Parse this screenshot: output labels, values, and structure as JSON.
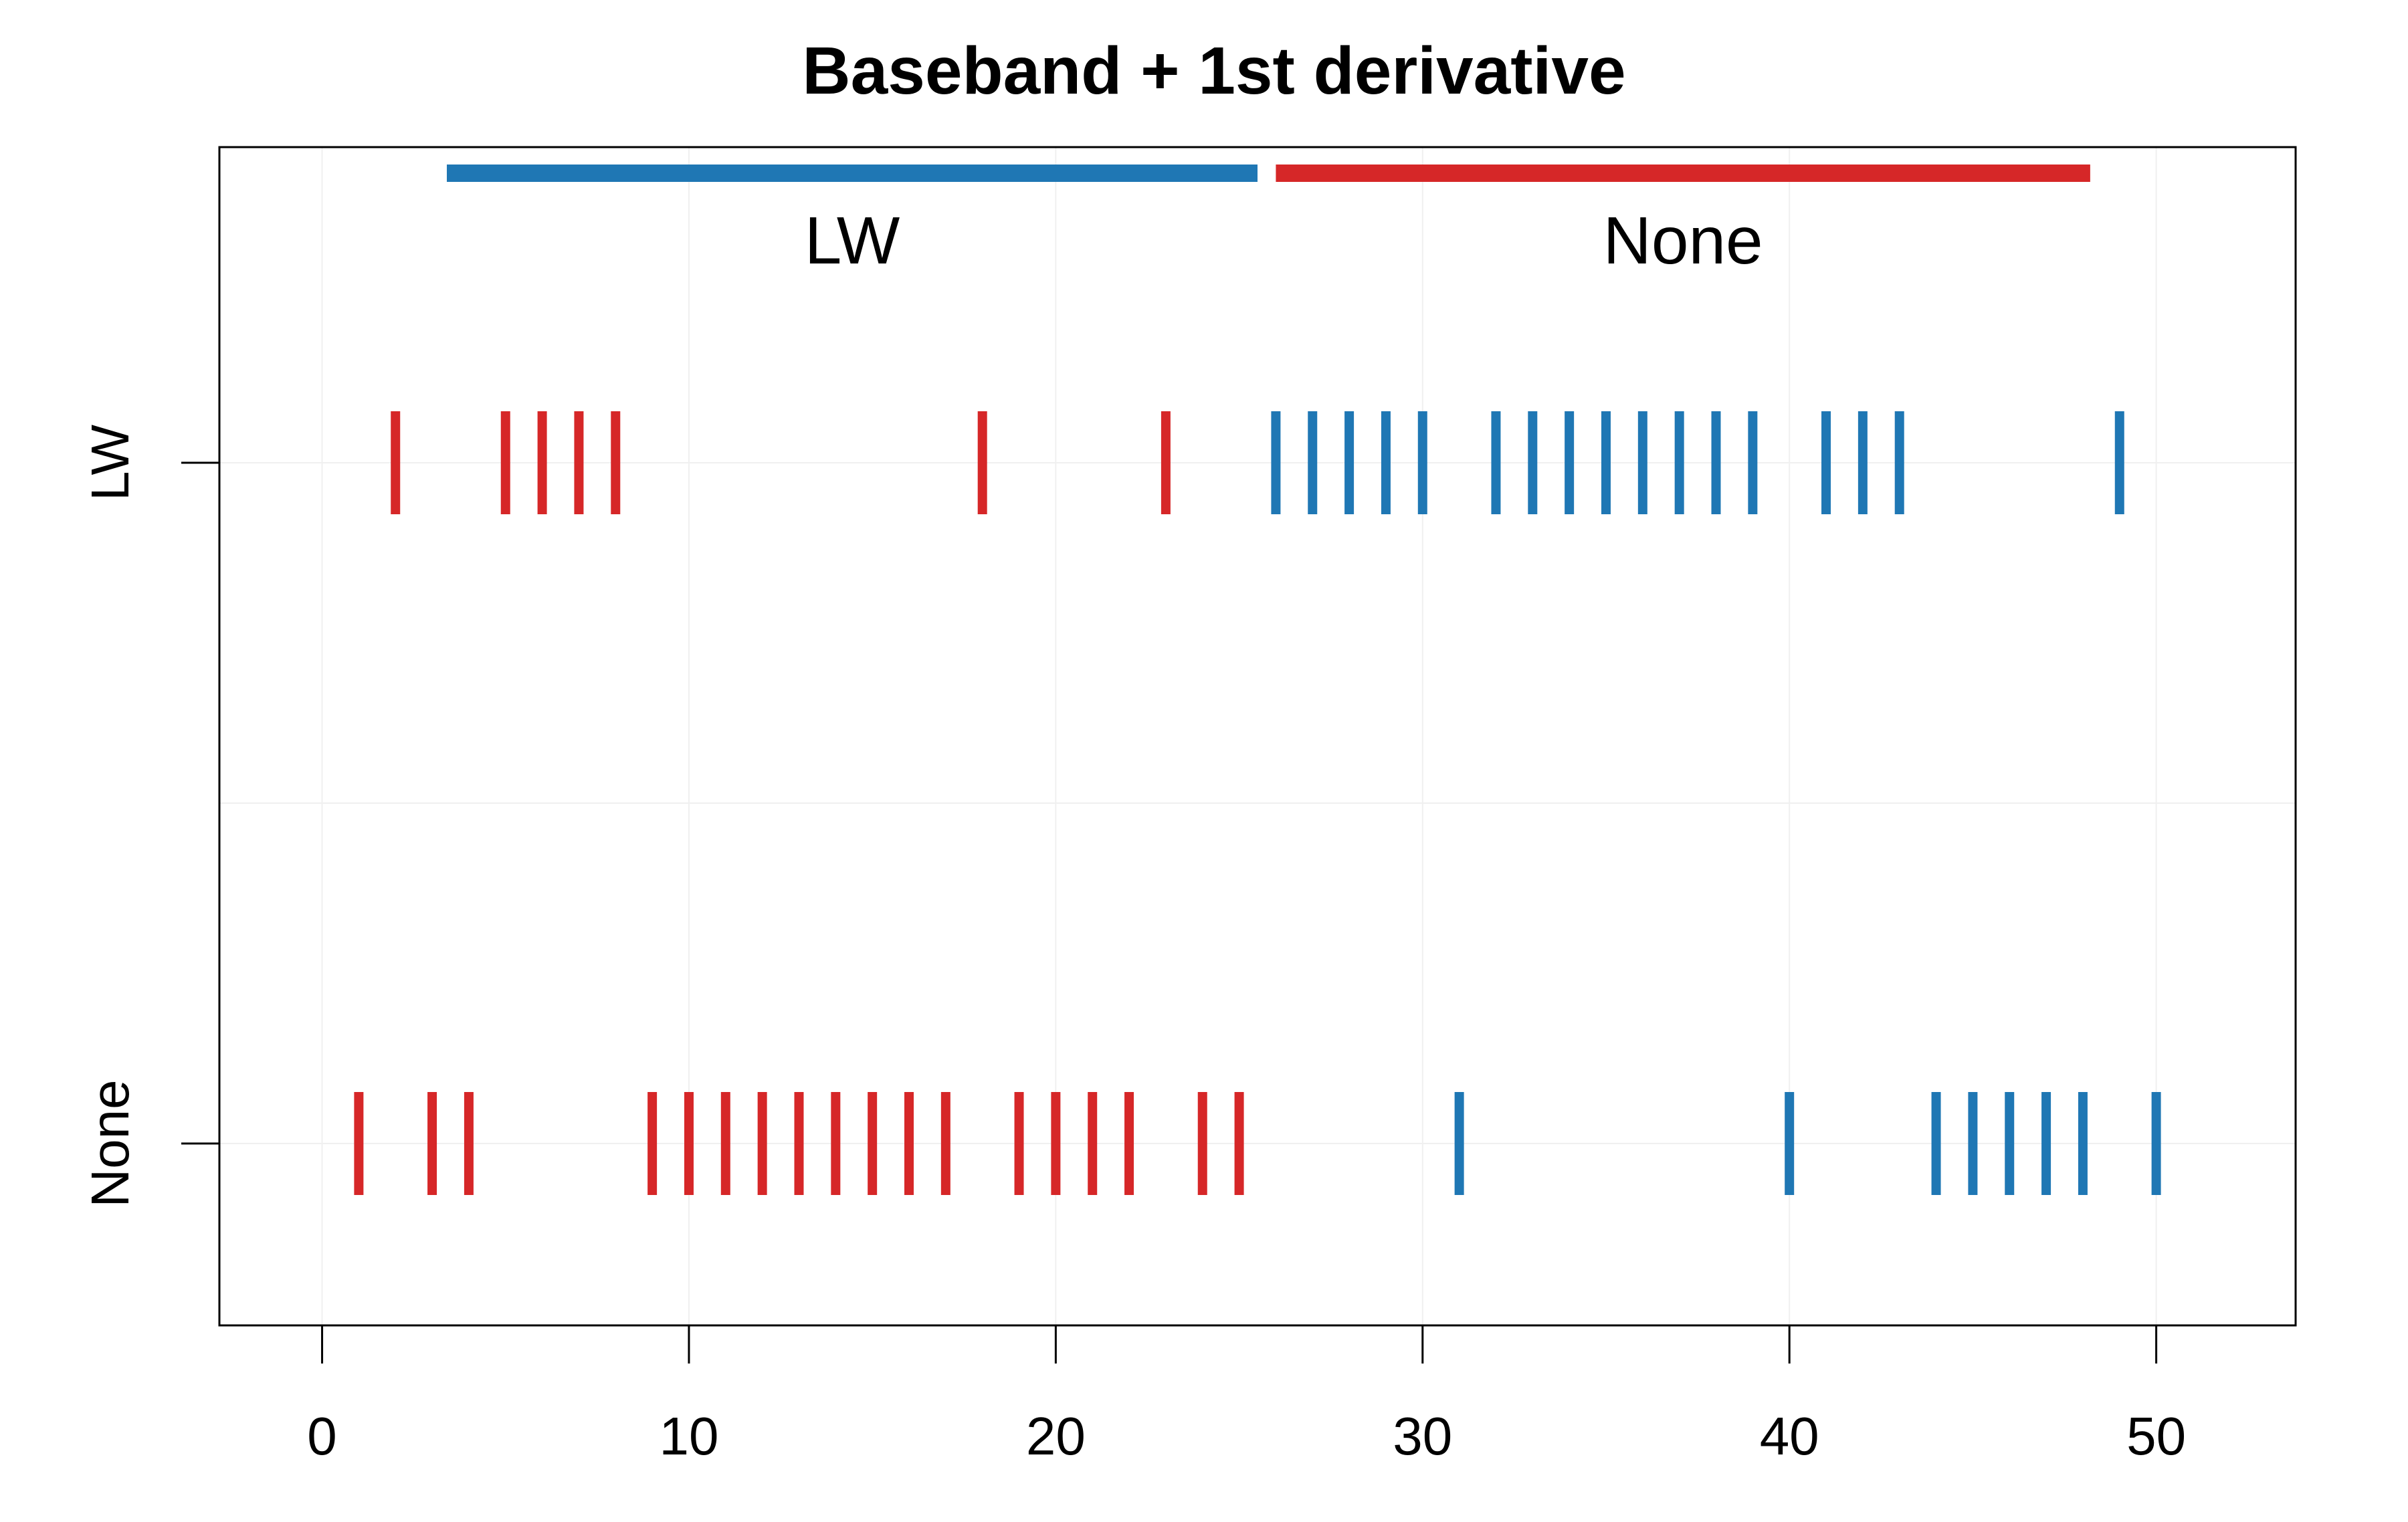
{
  "chart_data": {
    "type": "strip",
    "title": "Baseband + 1st derivative",
    "xlabel": "",
    "ylabel": "",
    "xlim": [
      -2.8,
      53.8
    ],
    "x_ticks": [
      0,
      10,
      20,
      30,
      40,
      50
    ],
    "y_categories": [
      "LW",
      "None"
    ],
    "grid": true,
    "colors": {
      "red": "#d62728",
      "blue": "#1f77b4"
    },
    "groups": [
      {
        "name": "LW",
        "x_start": 3.4,
        "x_end": 25.5,
        "color": "#1f77b4"
      },
      {
        "name": "None",
        "x_start": 26.0,
        "x_end": 48.2,
        "color": "#d62728"
      }
    ],
    "series": [
      {
        "row": "LW",
        "points": [
          {
            "x": 2,
            "color": "red"
          },
          {
            "x": 5,
            "color": "red"
          },
          {
            "x": 6,
            "color": "red"
          },
          {
            "x": 7,
            "color": "red"
          },
          {
            "x": 8,
            "color": "red"
          },
          {
            "x": 18,
            "color": "red"
          },
          {
            "x": 23,
            "color": "red"
          },
          {
            "x": 26,
            "color": "blue"
          },
          {
            "x": 27,
            "color": "blue"
          },
          {
            "x": 28,
            "color": "blue"
          },
          {
            "x": 29,
            "color": "blue"
          },
          {
            "x": 30,
            "color": "blue"
          },
          {
            "x": 32,
            "color": "blue"
          },
          {
            "x": 33,
            "color": "blue"
          },
          {
            "x": 34,
            "color": "blue"
          },
          {
            "x": 35,
            "color": "blue"
          },
          {
            "x": 36,
            "color": "blue"
          },
          {
            "x": 37,
            "color": "blue"
          },
          {
            "x": 38,
            "color": "blue"
          },
          {
            "x": 39,
            "color": "blue"
          },
          {
            "x": 41,
            "color": "blue"
          },
          {
            "x": 42,
            "color": "blue"
          },
          {
            "x": 43,
            "color": "blue"
          },
          {
            "x": 49,
            "color": "blue"
          }
        ]
      },
      {
        "row": "None",
        "points": [
          {
            "x": 1,
            "color": "red"
          },
          {
            "x": 3,
            "color": "red"
          },
          {
            "x": 4,
            "color": "red"
          },
          {
            "x": 9,
            "color": "red"
          },
          {
            "x": 10,
            "color": "red"
          },
          {
            "x": 11,
            "color": "red"
          },
          {
            "x": 12,
            "color": "red"
          },
          {
            "x": 13,
            "color": "red"
          },
          {
            "x": 14,
            "color": "red"
          },
          {
            "x": 15,
            "color": "red"
          },
          {
            "x": 16,
            "color": "red"
          },
          {
            "x": 17,
            "color": "red"
          },
          {
            "x": 19,
            "color": "red"
          },
          {
            "x": 20,
            "color": "red"
          },
          {
            "x": 21,
            "color": "red"
          },
          {
            "x": 22,
            "color": "red"
          },
          {
            "x": 24,
            "color": "red"
          },
          {
            "x": 25,
            "color": "red"
          },
          {
            "x": 31,
            "color": "blue"
          },
          {
            "x": 40,
            "color": "blue"
          },
          {
            "x": 44,
            "color": "blue"
          },
          {
            "x": 45,
            "color": "blue"
          },
          {
            "x": 46,
            "color": "blue"
          },
          {
            "x": 47,
            "color": "blue"
          },
          {
            "x": 48,
            "color": "blue"
          },
          {
            "x": 50,
            "color": "blue"
          }
        ]
      }
    ]
  }
}
